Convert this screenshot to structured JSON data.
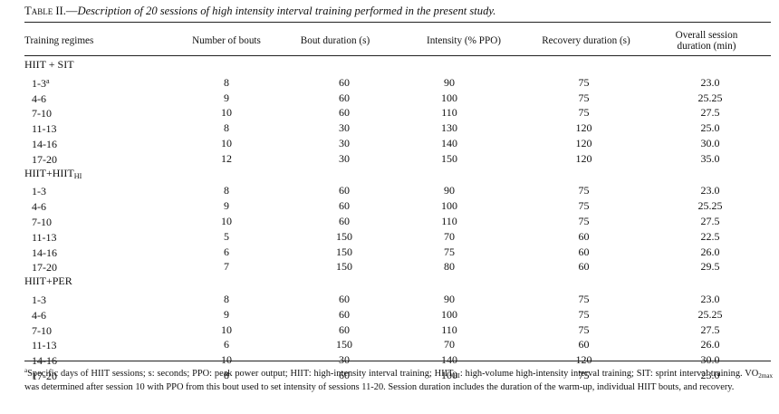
{
  "caption": {
    "table_label": "Table II.",
    "dash": "—",
    "description": "Description of 20 sessions of high intensity interval training performed in the present study."
  },
  "headers": {
    "training_regimes": "Training regimes",
    "number_of_bouts": "Number of bouts",
    "bout_duration": "Bout duration (s)",
    "intensity": "Intensity (% PPO)",
    "recovery_duration": "Recovery duration (s)",
    "overall_line1": "Overall session",
    "overall_line2": "duration (min)"
  },
  "groups": [
    {
      "name": "HIIT + SIT",
      "name_sub": "",
      "rows": [
        {
          "sessions": "1-3",
          "sup": "a",
          "bouts": "8",
          "duration": "60",
          "intensity": "90",
          "recovery": "75",
          "overall": "23.0"
        },
        {
          "sessions": "4-6",
          "sup": "",
          "bouts": "9",
          "duration": "60",
          "intensity": "100",
          "recovery": "75",
          "overall": "25.25"
        },
        {
          "sessions": "7-10",
          "sup": "",
          "bouts": "10",
          "duration": "60",
          "intensity": "110",
          "recovery": "75",
          "overall": "27.5"
        },
        {
          "sessions": "11-13",
          "sup": "",
          "bouts": "8",
          "duration": "30",
          "intensity": "130",
          "recovery": "120",
          "overall": "25.0"
        },
        {
          "sessions": "14-16",
          "sup": "",
          "bouts": "10",
          "duration": "30",
          "intensity": "140",
          "recovery": "120",
          "overall": "30.0"
        },
        {
          "sessions": "17-20",
          "sup": "",
          "bouts": "12",
          "duration": "30",
          "intensity": "150",
          "recovery": "120",
          "overall": "35.0"
        }
      ]
    },
    {
      "name": "HIIT+HIIT",
      "name_sub": "HI",
      "rows": [
        {
          "sessions": "1-3",
          "sup": "",
          "bouts": "8",
          "duration": "60",
          "intensity": "90",
          "recovery": "75",
          "overall": "23.0"
        },
        {
          "sessions": "4-6",
          "sup": "",
          "bouts": "9",
          "duration": "60",
          "intensity": "100",
          "recovery": "75",
          "overall": "25.25"
        },
        {
          "sessions": "7-10",
          "sup": "",
          "bouts": "10",
          "duration": "60",
          "intensity": "110",
          "recovery": "75",
          "overall": "27.5"
        },
        {
          "sessions": "11-13",
          "sup": "",
          "bouts": "5",
          "duration": "150",
          "intensity": "70",
          "recovery": "60",
          "overall": "22.5"
        },
        {
          "sessions": "14-16",
          "sup": "",
          "bouts": "6",
          "duration": "150",
          "intensity": "75",
          "recovery": "60",
          "overall": "26.0"
        },
        {
          "sessions": "17-20",
          "sup": "",
          "bouts": "7",
          "duration": "150",
          "intensity": "80",
          "recovery": "60",
          "overall": "29.5"
        }
      ]
    },
    {
      "name": "HIIT+PER",
      "name_sub": "",
      "rows": [
        {
          "sessions": "1-3",
          "sup": "",
          "bouts": "8",
          "duration": "60",
          "intensity": "90",
          "recovery": "75",
          "overall": "23.0"
        },
        {
          "sessions": "4-6",
          "sup": "",
          "bouts": "9",
          "duration": "60",
          "intensity": "100",
          "recovery": "75",
          "overall": "25.25"
        },
        {
          "sessions": "7-10",
          "sup": "",
          "bouts": "10",
          "duration": "60",
          "intensity": "110",
          "recovery": "75",
          "overall": "27.5"
        },
        {
          "sessions": "11-13",
          "sup": "",
          "bouts": "6",
          "duration": "150",
          "intensity": "70",
          "recovery": "60",
          "overall": "26.0"
        },
        {
          "sessions": "14-16",
          "sup": "",
          "bouts": "10",
          "duration": "30",
          "intensity": "140",
          "recovery": "120",
          "overall": "30.0"
        },
        {
          "sessions": "17-20",
          "sup": "",
          "bouts": "8",
          "duration": "60",
          "intensity": "100",
          "recovery": "75",
          "overall": "23.0"
        }
      ]
    }
  ],
  "footnote": {
    "marker": "a",
    "part1": "Specific days of HIIT sessions; s: seconds; PPO: peak power output; HIIT: high-intensity interval training; HIIT",
    "sub1": "HI",
    "part2": ": high-volume high-intensity interval training; SIT: sprint interval training. VO",
    "sub2": "2max",
    "part3": " was determined after session 10 with PPO from this bout used to set intensity of sessions 11-20. Session duration includes the duration of the warm-up, individual HIIT bouts, and recovery."
  }
}
